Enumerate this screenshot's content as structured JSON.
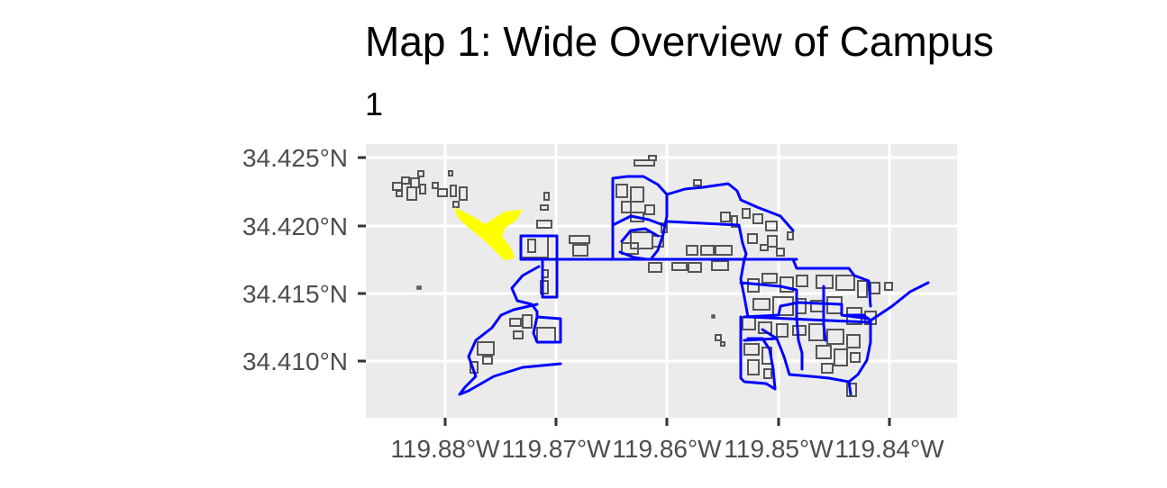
{
  "map": {
    "title": "Map 1: Wide Overview of Campus",
    "subtitle": "1",
    "y_axis": {
      "ticks": [
        "34.425°N",
        "34.420°N",
        "34.415°N",
        "34.410°N"
      ],
      "values": [
        34.425,
        34.42,
        34.415,
        34.41
      ]
    },
    "x_axis": {
      "ticks": [
        "119.88°W",
        "119.87°W",
        "119.86°W",
        "119.85°W",
        "119.84°W"
      ],
      "values": [
        -119.88,
        -119.87,
        -119.86,
        -119.85,
        -119.84
      ]
    },
    "colors": {
      "panel_background": "#ebebeb",
      "grid": "#ffffff",
      "roads": "#0000ff",
      "lagoon": "#ffff00",
      "buildings": "#555555"
    },
    "layers": [
      "buildings",
      "roads",
      "lagoon"
    ]
  }
}
